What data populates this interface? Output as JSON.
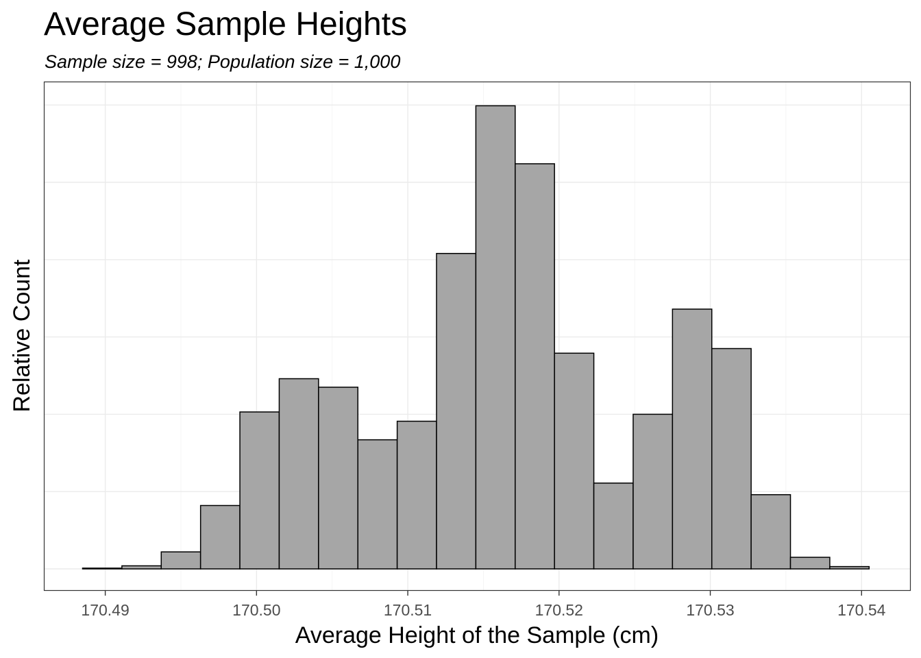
{
  "chart_data": {
    "type": "bar",
    "title": "Average Sample Heights",
    "subtitle": "Sample size = 998; Population size = 1,000",
    "xlabel": "Average Height of the Sample (cm)",
    "ylabel": "Relative Count",
    "xlim": [
      170.4885,
      170.5406
    ],
    "ylim": [
      -0.2,
      6.2
    ],
    "x_ticks": [
      "170.49",
      "170.50",
      "170.51",
      "170.52",
      "170.53",
      "170.54"
    ],
    "x_tick_values": [
      170.49,
      170.5,
      170.51,
      170.52,
      170.53,
      170.54
    ],
    "y_ticks_shown": false,
    "y_gridlines": [
      0,
      1,
      2,
      3,
      4,
      5,
      6
    ],
    "bins": [
      {
        "x0": 170.4885,
        "x1": 170.4911,
        "value": 0.01
      },
      {
        "x0": 170.4911,
        "x1": 170.4937,
        "value": 0.04
      },
      {
        "x0": 170.4937,
        "x1": 170.4963,
        "value": 0.22
      },
      {
        "x0": 170.4963,
        "x1": 170.4989,
        "value": 0.82
      },
      {
        "x0": 170.4989,
        "x1": 170.5015,
        "value": 2.03
      },
      {
        "x0": 170.5015,
        "x1": 170.5041,
        "value": 2.46
      },
      {
        "x0": 170.5041,
        "x1": 170.5067,
        "value": 2.35
      },
      {
        "x0": 170.5067,
        "x1": 170.5093,
        "value": 1.67
      },
      {
        "x0": 170.5093,
        "x1": 170.5119,
        "value": 1.91
      },
      {
        "x0": 170.5119,
        "x1": 170.5145,
        "value": 4.08
      },
      {
        "x0": 170.5145,
        "x1": 170.5171,
        "value": 5.99
      },
      {
        "x0": 170.5171,
        "x1": 170.5197,
        "value": 5.24
      },
      {
        "x0": 170.5197,
        "x1": 170.5223,
        "value": 2.79
      },
      {
        "x0": 170.5223,
        "x1": 170.5249,
        "value": 1.11
      },
      {
        "x0": 170.5249,
        "x1": 170.5275,
        "value": 2.0
      },
      {
        "x0": 170.5275,
        "x1": 170.5301,
        "value": 3.36
      },
      {
        "x0": 170.5301,
        "x1": 170.5327,
        "value": 2.85
      },
      {
        "x0": 170.5327,
        "x1": 170.5353,
        "value": 0.96
      },
      {
        "x0": 170.5353,
        "x1": 170.5379,
        "value": 0.15
      },
      {
        "x0": 170.5379,
        "x1": 170.5405,
        "value": 0.03
      }
    ],
    "grid": true,
    "legend": "none",
    "bar_fill": "#a6a6a6",
    "bar_stroke": "#000000",
    "grid_color": "#ebebeb",
    "panel_border": "#333333"
  }
}
